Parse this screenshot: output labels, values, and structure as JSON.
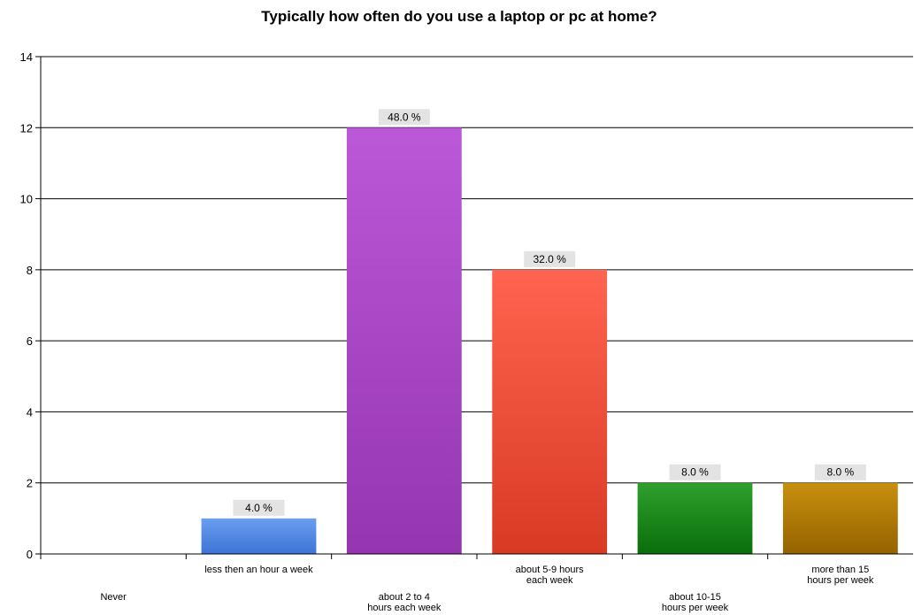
{
  "chart_data": {
    "type": "bar",
    "title": "Typically how often do you use a laptop or pc at home?",
    "xlabel": "",
    "ylabel": "",
    "ylim": [
      0,
      14
    ],
    "yticks": [
      0,
      2,
      4,
      6,
      8,
      10,
      12,
      14
    ],
    "grid": true,
    "legend": "none",
    "categories": [
      [
        "Never"
      ],
      [
        "less then an hour a week"
      ],
      [
        "about 2 to 4",
        "hours each week"
      ],
      [
        "about 5-9 hours",
        "each week"
      ],
      [
        "about 10-15",
        "hours per week"
      ],
      [
        "more than 15",
        "hours per week"
      ]
    ],
    "values": [
      0,
      1,
      12,
      8,
      2,
      2
    ],
    "data_labels": [
      "",
      "4.0 %",
      "48.0 %",
      "32.0 %",
      "8.0 %",
      "8.0 %"
    ],
    "colors": [
      [
        "#cccccc",
        "#cccccc"
      ],
      [
        "#6a9ef0",
        "#3d74d6"
      ],
      [
        "#bb58d8",
        "#9535b0"
      ],
      [
        "#ff6450",
        "#d83a24"
      ],
      [
        "#2ea02e",
        "#0a6e0a"
      ],
      [
        "#c8900e",
        "#946200"
      ]
    ]
  }
}
